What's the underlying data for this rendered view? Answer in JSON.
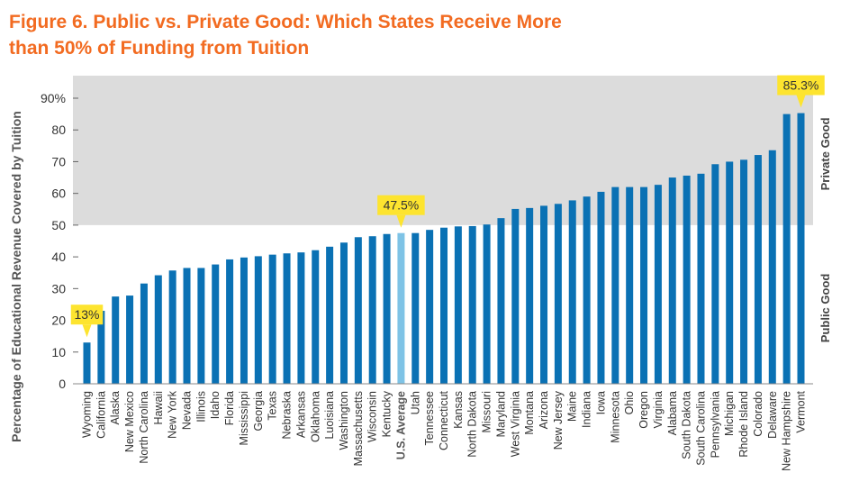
{
  "title": {
    "line1": "Figure 6. Public vs. Private Good: Which States Receive More",
    "line2": "than 50% of Funding from Tuition"
  },
  "colors": {
    "title": "#f26b21",
    "bar": "#0a71b4",
    "highlight_bar": "#7ec3e6",
    "private_zone": "#dcdcdc",
    "callout": "#fde42f"
  },
  "chart_data": {
    "type": "bar",
    "ylabel": "Percentage of Educational Revenue Covered by Tuition",
    "ylim": [
      0,
      90
    ],
    "yticks": [
      0,
      10,
      20,
      30,
      40,
      50,
      60,
      70,
      80,
      90
    ],
    "ytick_labels": [
      "0",
      "10",
      "20",
      "30",
      "40",
      "50",
      "60",
      "70",
      "80",
      "90%"
    ],
    "grid": false,
    "threshold": 50,
    "zones": {
      "upper": "Private Good",
      "lower": "Public Good"
    },
    "highlight_category": "U.S. Average",
    "categories": [
      "Wyoming",
      "California",
      "Alaska",
      "New Mexico",
      "North Carolina",
      "Hawaii",
      "New York",
      "Nevada",
      "Illinois",
      "Idaho",
      "Florida",
      "Mississippi",
      "Georgia",
      "Texas",
      "Nebraska",
      "Arkansas",
      "Oklahoma",
      "Luoisiana",
      "Washington",
      "Massachusetts",
      "Wisconsin",
      "Kentucky",
      "U.S. Average",
      "Utah",
      "Tennessee",
      "Connecticut",
      "Kansas",
      "North Dakota",
      "Missouri",
      "Maryland",
      "West Virginia",
      "Montana",
      "Arizona",
      "New Jersey",
      "Maine",
      "Indiana",
      "Iowa",
      "Minnesota",
      "Ohio",
      "Oregon",
      "Virginia",
      "Alabama",
      "South Dakota",
      "South Carolina",
      "Pennsylvania",
      "Michigan",
      "Rhode Island",
      "Colorado",
      "Delaware",
      "New Hampshire",
      "Vermont"
    ],
    "values": [
      13,
      23,
      27.5,
      27.8,
      31.6,
      34.2,
      35.7,
      36.5,
      36.5,
      37.6,
      39.2,
      39.8,
      40.2,
      40.7,
      41.1,
      41.4,
      42.1,
      43.2,
      44.5,
      46.2,
      46.5,
      47.2,
      47.5,
      47.5,
      48.5,
      49.2,
      49.6,
      49.7,
      50.2,
      52.2,
      55.1,
      55.4,
      56.1,
      56.7,
      57.8,
      59,
      60.5,
      62,
      62,
      62,
      62.7,
      65,
      65.6,
      66.2,
      69.2,
      70,
      70.6,
      72.1,
      73.6,
      85,
      85.3
    ],
    "annotations": [
      {
        "category": "Wyoming",
        "label": "13%"
      },
      {
        "category": "U.S. Average",
        "label": "47.5%"
      },
      {
        "category": "Vermont",
        "label": "85.3%"
      }
    ]
  }
}
